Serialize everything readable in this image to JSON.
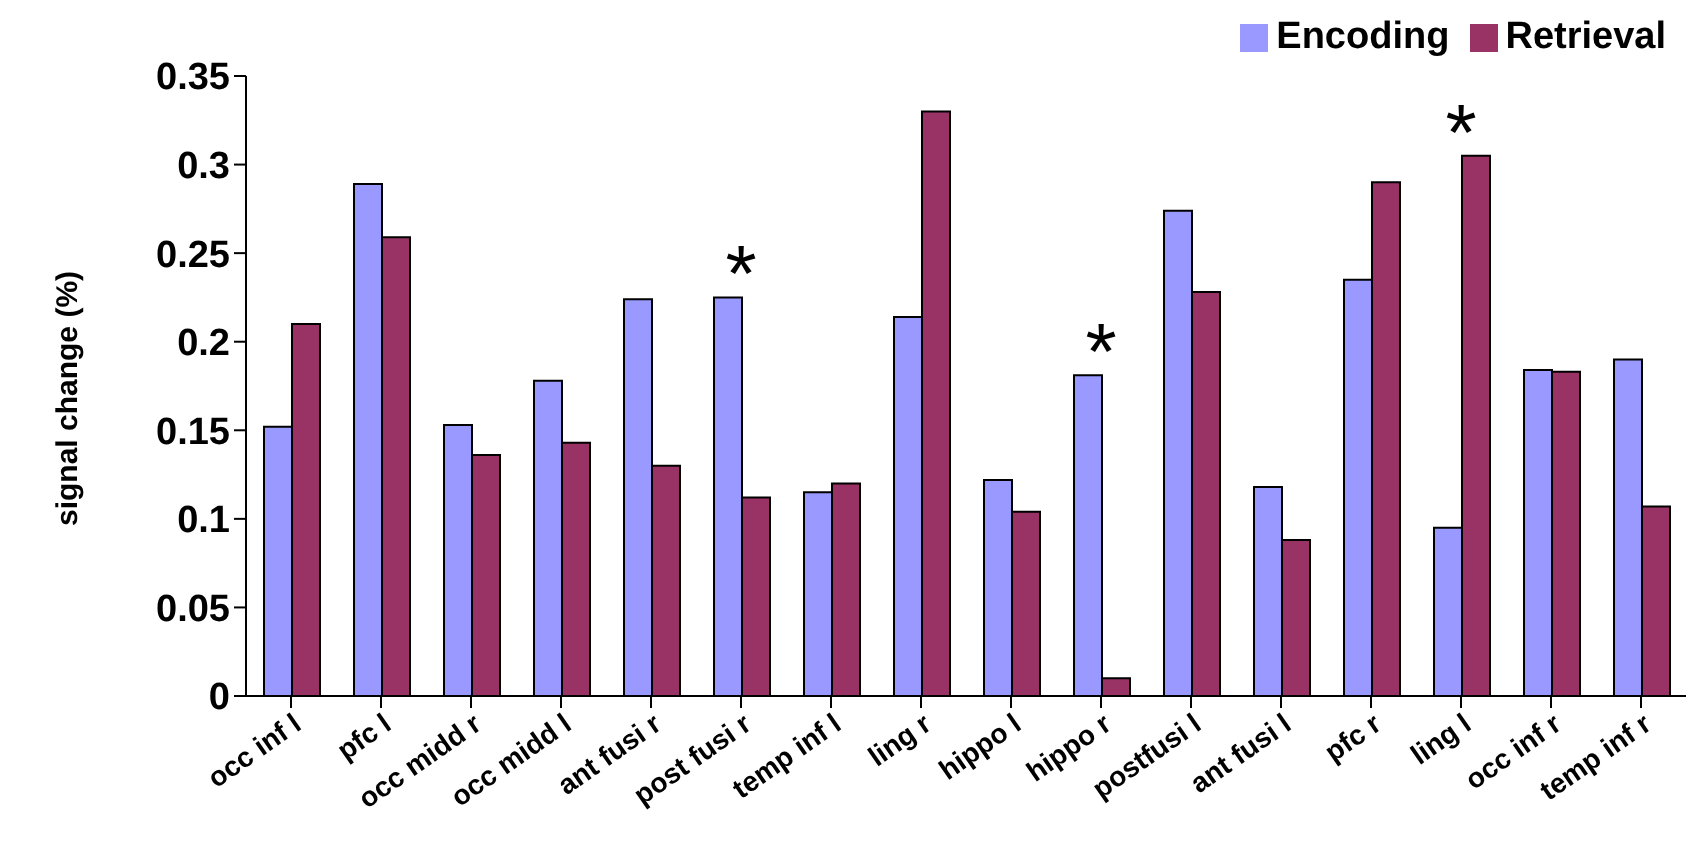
{
  "chart_data": {
    "type": "bar",
    "ylabel": "signal change (%)",
    "categories": [
      "occ inf l",
      "pfc l",
      "occ midd r",
      "occ midd l",
      "ant fusi r",
      "post fusi r",
      "temp inf l",
      "ling r",
      "hippo l",
      "hippo r",
      "postfusi l",
      "ant fusi l",
      "pfc r",
      "ling l",
      "occ inf r",
      "temp inf r"
    ],
    "series": [
      {
        "name": "Encoding",
        "color": "#9999ff",
        "values": [
          0.152,
          0.289,
          0.153,
          0.178,
          0.224,
          0.225,
          0.115,
          0.214,
          0.122,
          0.181,
          0.274,
          0.118,
          0.235,
          0.095,
          0.184,
          0.19
        ]
      },
      {
        "name": "Retrieval",
        "color": "#993366",
        "values": [
          0.21,
          0.259,
          0.136,
          0.143,
          0.13,
          0.112,
          0.12,
          0.33,
          0.104,
          0.01,
          0.228,
          0.088,
          0.29,
          0.305,
          0.183,
          0.107
        ]
      }
    ],
    "ylim": [
      0,
      0.35
    ],
    "yticks": [
      0,
      0.05,
      0.1,
      0.15,
      0.2,
      0.25,
      0.3,
      0.35
    ],
    "grid": false,
    "legend": "top right",
    "annotations": [
      {
        "text": "*",
        "x": "post fusi r",
        "y": 0.225
      },
      {
        "text": "*",
        "x": "hippo r",
        "y": 0.181
      },
      {
        "text": "*",
        "x": "ling l",
        "y": 0.305
      }
    ]
  }
}
